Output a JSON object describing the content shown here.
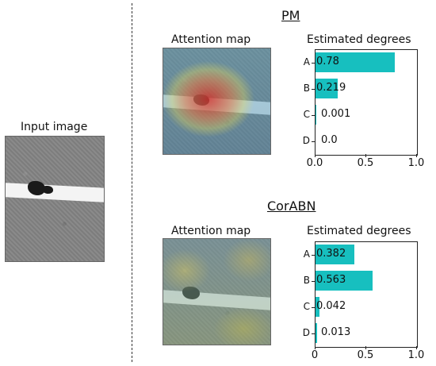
{
  "input": {
    "label": "Input image"
  },
  "pm": {
    "title": "PM",
    "attention_label": "Attention map",
    "chart_label": "Estimated degrees"
  },
  "cor": {
    "title": "CorABN",
    "attention_label": "Attention map",
    "chart_label": "Estimated degrees"
  },
  "chart_data": [
    {
      "type": "bar",
      "orientation": "horizontal",
      "title": "Estimated degrees",
      "categories": [
        "A",
        "B",
        "C",
        "D"
      ],
      "values": [
        0.78,
        0.219,
        0.001,
        0.0
      ],
      "value_labels": [
        "0.78",
        "0.219",
        "0.001",
        "0.0"
      ],
      "xlim": [
        0,
        1.0
      ],
      "xticks": [
        "0.0",
        "0.5",
        "1.0"
      ],
      "bar_color": "#17bfbf",
      "grid": false
    },
    {
      "type": "bar",
      "orientation": "horizontal",
      "title": "Estimated degrees",
      "categories": [
        "A",
        "B",
        "C",
        "D"
      ],
      "values": [
        0.382,
        0.563,
        0.042,
        0.013
      ],
      "value_labels": [
        "0.382",
        "0.563",
        "0.042",
        "0.013"
      ],
      "xlim": [
        0,
        1.0
      ],
      "xticks": [
        "0",
        "0.5",
        "1.0"
      ],
      "bar_color": "#17bfbf",
      "grid": false
    }
  ]
}
